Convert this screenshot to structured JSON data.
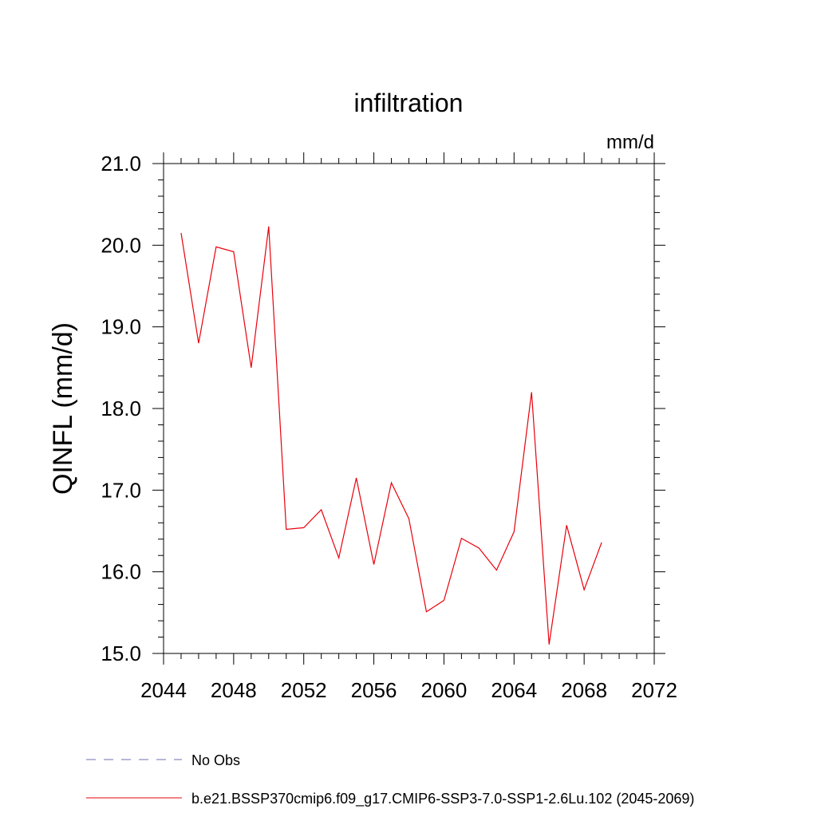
{
  "chart_data": {
    "type": "line",
    "title": "infiltration",
    "units_label": "mm/d",
    "ylabel": "QINFL  (mm/d)",
    "xlabel": "",
    "xlim": [
      2044,
      2072
    ],
    "ylim": [
      15.0,
      21.0
    ],
    "x_ticks": [
      "2044",
      "2048",
      "2052",
      "2056",
      "2060",
      "2064",
      "2068",
      "2072"
    ],
    "y_ticks": [
      "15.0",
      "16.0",
      "17.0",
      "18.0",
      "19.0",
      "20.0",
      "21.0"
    ],
    "grid": false,
    "legend_position": "bottom-left",
    "series": [
      {
        "name": "b.e21.BSSP370cmip6.f09_g17.CMIP6-SSP3-7.0-SSP1-2.6Lu.102 (2045-2069)",
        "color": "#e8000b",
        "style": "solid",
        "x": [
          2045,
          2046,
          2047,
          2048,
          2049,
          2050,
          2051,
          2052,
          2053,
          2054,
          2055,
          2056,
          2057,
          2058,
          2059,
          2060,
          2061,
          2062,
          2063,
          2064,
          2065,
          2066,
          2067,
          2068,
          2069
        ],
        "y": [
          20.15,
          18.8,
          19.98,
          19.92,
          18.5,
          20.23,
          16.52,
          16.54,
          16.76,
          16.17,
          17.15,
          16.09,
          17.09,
          16.65,
          15.51,
          15.65,
          16.41,
          16.29,
          16.02,
          16.49,
          18.2,
          15.11,
          16.57,
          15.78,
          16.36
        ]
      },
      {
        "name": "No Obs",
        "color": "#6f6fb0",
        "style": "dashed",
        "x": [],
        "y": []
      }
    ]
  }
}
